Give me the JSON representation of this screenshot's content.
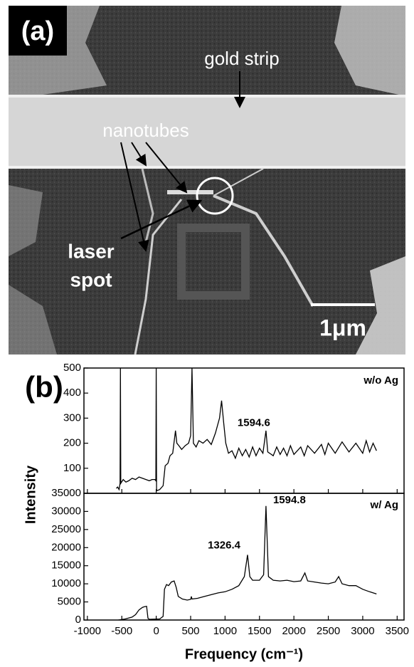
{
  "panel_a": {
    "label": "(a)",
    "gold_strip": "gold strip",
    "nanotubes": "nanotubes",
    "laser_spot": [
      "laser",
      "spot"
    ],
    "scale_bar": "1μm"
  },
  "panel_b_label": "(b)",
  "y_label": "Intensity",
  "x_label": "Frequency (cm⁻¹)",
  "chart_data": [
    {
      "type": "line",
      "label": "w/o Ag",
      "annotations": [
        "1594.6"
      ],
      "color": "#000000",
      "xlim": [
        -1050,
        3600
      ],
      "ylim": [
        0,
        500
      ],
      "yticks": [
        100,
        200,
        300,
        400,
        500
      ],
      "x": [
        -580,
        -560,
        -540,
        -525,
        -520,
        -515,
        -480,
        -440,
        -400,
        -350,
        -300,
        -250,
        -200,
        -150,
        -100,
        -60,
        -20,
        -5,
        0,
        5,
        50,
        100,
        130,
        170,
        200,
        240,
        280,
        300,
        330,
        370,
        420,
        470,
        500,
        520,
        540,
        580,
        620,
        680,
        740,
        800,
        860,
        920,
        950,
        980,
        1010,
        1050,
        1100,
        1150,
        1200,
        1250,
        1300,
        1350,
        1400,
        1450,
        1500,
        1550,
        1594.6,
        1620,
        1700,
        1750,
        1800,
        1850,
        1900,
        1950,
        2000,
        2100,
        2150,
        2200,
        2300,
        2400,
        2450,
        2500,
        2600,
        2700,
        2800,
        2900,
        3000,
        3050,
        3100,
        3150,
        3200
      ],
      "values": [
        20,
        25,
        15,
        40,
        500,
        40,
        55,
        45,
        50,
        60,
        55,
        65,
        60,
        55,
        50,
        55,
        55,
        50,
        500,
        10,
        15,
        30,
        110,
        120,
        150,
        160,
        250,
        200,
        190,
        175,
        190,
        200,
        230,
        500,
        200,
        185,
        210,
        200,
        215,
        195,
        240,
        300,
        370,
        280,
        200,
        160,
        170,
        140,
        180,
        150,
        175,
        145,
        185,
        150,
        180,
        160,
        250,
        165,
        150,
        185,
        155,
        180,
        150,
        190,
        155,
        185,
        150,
        190,
        160,
        195,
        155,
        200,
        160,
        205,
        165,
        200,
        160,
        210,
        165,
        200,
        170
      ]
    },
    {
      "type": "line",
      "label": "w/ Ag",
      "annotations": [
        "1594.8",
        "1326.4"
      ],
      "color": "#000000",
      "xlim": [
        -1050,
        3600
      ],
      "ylim": [
        0,
        35000
      ],
      "yticks": [
        0,
        5000,
        10000,
        15000,
        20000,
        25000,
        30000,
        35000
      ],
      "xticks": [
        -1000,
        -500,
        0,
        500,
        1000,
        1500,
        2000,
        2500,
        3000,
        3500
      ],
      "x": [
        -550,
        -450,
        -350,
        -300,
        -250,
        -200,
        -170,
        -140,
        -120,
        -100,
        50,
        100,
        120,
        150,
        180,
        220,
        260,
        290,
        320,
        380,
        450,
        500,
        510,
        520,
        600,
        700,
        800,
        900,
        1000,
        1100,
        1200,
        1280,
        1326.4,
        1360,
        1400,
        1500,
        1560,
        1594.8,
        1630,
        1700,
        1800,
        1900,
        2000,
        2100,
        2160,
        2200,
        2300,
        2400,
        2500,
        2600,
        2650,
        2700,
        2800,
        2900,
        3000,
        3100,
        3200
      ],
      "values": [
        0,
        300,
        800,
        1500,
        2800,
        3500,
        3700,
        3800,
        500,
        200,
        300,
        1000,
        8500,
        9800,
        9500,
        10500,
        10800,
        9000,
        6500,
        5800,
        5500,
        5700,
        6500,
        5800,
        6000,
        6500,
        7000,
        7500,
        7800,
        8500,
        9500,
        12000,
        18000,
        12000,
        11000,
        11000,
        12500,
        31500,
        12000,
        11000,
        10800,
        11000,
        10600,
        10800,
        13000,
        10800,
        10500,
        10200,
        10000,
        10500,
        12000,
        10000,
        9500,
        9500,
        8500,
        7800,
        7200
      ]
    }
  ]
}
